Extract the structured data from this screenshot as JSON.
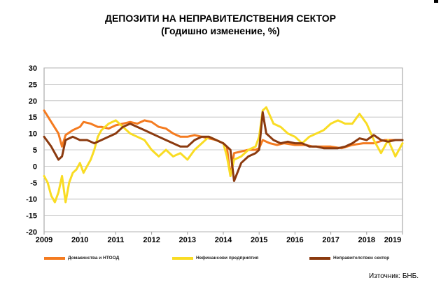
{
  "title_line1": "ДЕПОЗИТИ НА НЕПРАВИТЕЛСТВЕНИЯ СЕКТОР",
  "title_line2": "(Годишно изменение, %)",
  "source": "Източник: БНБ.",
  "chart_data": {
    "type": "line",
    "ylim": [
      -20,
      30
    ],
    "yticks": [
      "30",
      "25",
      "20",
      "15",
      "10",
      "5",
      "0",
      "-5",
      "-10",
      "-15",
      "-20"
    ],
    "xlim": [
      2009,
      2019
    ],
    "xticks": [
      "2009",
      "2010",
      "2011",
      "2012",
      "2013",
      "2014",
      "2015",
      "2016",
      "2017",
      "2018",
      "2019"
    ],
    "grid": "horizontal",
    "legend": "bottom",
    "series": [
      {
        "name": "Домакинства и НТООД",
        "color": "#f47b20",
        "x": [
          2009.0,
          2009.2,
          2009.4,
          2009.5,
          2009.6,
          2009.8,
          2010.0,
          2010.1,
          2010.3,
          2010.5,
          2010.6,
          2010.8,
          2011.0,
          2011.2,
          2011.4,
          2011.6,
          2011.8,
          2012.0,
          2012.2,
          2012.4,
          2012.6,
          2012.8,
          2013.0,
          2013.2,
          2013.4,
          2013.6,
          2013.8,
          2014.0,
          2014.1,
          2014.2,
          2014.3,
          2014.5,
          2014.7,
          2014.9,
          2015.0,
          2015.1,
          2015.3,
          2015.5,
          2015.7,
          2016.0,
          2016.3,
          2016.5,
          2016.7,
          2017.0,
          2017.3,
          2017.6,
          2017.9,
          2018.2,
          2018.5,
          2018.8,
          2019.0
        ],
        "values": [
          17,
          13.5,
          10,
          6,
          9.5,
          11,
          12,
          13.5,
          13,
          12,
          12,
          11.5,
          12.5,
          13,
          13.5,
          13,
          14,
          13.5,
          12,
          11.5,
          10,
          9,
          9,
          9.5,
          9,
          8.5,
          8,
          7,
          6,
          -3,
          4,
          4.5,
          5,
          5,
          5.5,
          8,
          7,
          6.5,
          7,
          6.5,
          6.5,
          6,
          6,
          6,
          5.5,
          6.5,
          7,
          7,
          8,
          8,
          8
        ]
      },
      {
        "name": "Нефинансови предприятия",
        "color": "#f9dc24",
        "x": [
          2009.0,
          2009.1,
          2009.2,
          2009.3,
          2009.4,
          2009.5,
          2009.6,
          2009.7,
          2009.8,
          2009.9,
          2010.0,
          2010.1,
          2010.2,
          2010.3,
          2010.4,
          2010.5,
          2010.6,
          2010.8,
          2011.0,
          2011.2,
          2011.4,
          2011.6,
          2011.8,
          2012.0,
          2012.2,
          2012.4,
          2012.6,
          2012.8,
          2013.0,
          2013.2,
          2013.4,
          2013.6,
          2013.8,
          2014.0,
          2014.1,
          2014.2,
          2014.3,
          2014.5,
          2014.7,
          2014.9,
          2015.0,
          2015.1,
          2015.2,
          2015.4,
          2015.6,
          2015.8,
          2016.0,
          2016.2,
          2016.4,
          2016.6,
          2016.8,
          2017.0,
          2017.2,
          2017.4,
          2017.6,
          2017.8,
          2018.0,
          2018.2,
          2018.4,
          2018.6,
          2018.8,
          2019.0
        ],
        "values": [
          -3,
          -5,
          -9,
          -11,
          -8,
          -3,
          -11,
          -5,
          -2,
          -1,
          1,
          -2,
          0,
          2,
          5,
          9,
          11,
          13,
          14,
          12,
          10,
          9,
          8,
          5,
          3,
          5,
          3,
          4,
          2,
          5,
          7,
          9,
          8,
          7,
          3,
          -3,
          2,
          3,
          5,
          6,
          9,
          17,
          18,
          13,
          12,
          10,
          9,
          7,
          9,
          10,
          11,
          13,
          14,
          13,
          13,
          16,
          13,
          8,
          4,
          8,
          3,
          7
        ]
      },
      {
        "name": "Неправителствен сектор",
        "color": "#8b3a0f",
        "x": [
          2009.0,
          2009.2,
          2009.4,
          2009.5,
          2009.6,
          2009.8,
          2010.0,
          2010.2,
          2010.4,
          2010.6,
          2010.8,
          2011.0,
          2011.2,
          2011.4,
          2011.6,
          2011.8,
          2012.0,
          2012.2,
          2012.4,
          2012.6,
          2012.8,
          2013.0,
          2013.2,
          2013.4,
          2013.6,
          2013.8,
          2014.0,
          2014.1,
          2014.2,
          2014.3,
          2014.5,
          2014.7,
          2014.9,
          2015.0,
          2015.1,
          2015.2,
          2015.4,
          2015.6,
          2015.8,
          2016.0,
          2016.2,
          2016.4,
          2016.6,
          2016.8,
          2017.0,
          2017.2,
          2017.4,
          2017.6,
          2017.8,
          2018.0,
          2018.2,
          2018.4,
          2018.6,
          2018.8,
          2019.0
        ],
        "values": [
          9,
          6,
          2,
          3,
          8,
          9,
          8,
          8,
          7,
          8,
          9,
          10,
          12,
          13,
          12,
          11,
          10,
          9,
          8,
          7,
          6,
          6,
          8,
          9,
          9,
          8,
          7,
          6,
          5,
          -4.5,
          1,
          3,
          4,
          5,
          16.5,
          10,
          8,
          7,
          7.5,
          7,
          7,
          6,
          6,
          5.5,
          5.5,
          5.5,
          6,
          7,
          8.5,
          8,
          9.5,
          8,
          7.5,
          8,
          8
        ]
      }
    ]
  }
}
